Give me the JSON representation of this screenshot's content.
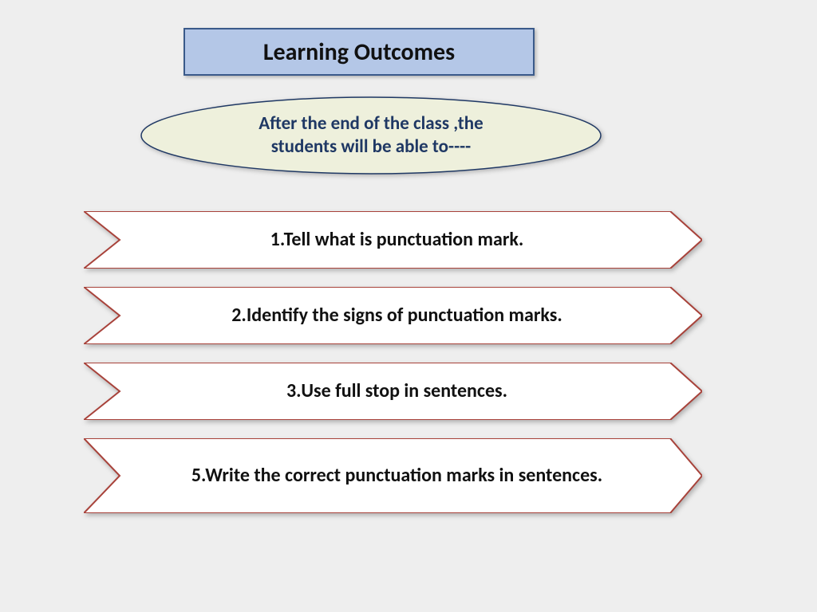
{
  "title": "Learning Outcomes",
  "subtitle_line1": "After the end of the class ,the",
  "subtitle_line2": "students will be able to----",
  "items": [
    "1.Tell what is punctuation mark.",
    "2.Identify the signs of punctuation marks.",
    "3.Use full stop in sentences.",
    "5.Write the correct punctuation marks in sentences."
  ],
  "colors": {
    "page_bg": "#eeeeee",
    "title_bg": "#b4c7e7",
    "title_border": "#3a5a8a",
    "ellipse_fill": "#eef0dc",
    "ellipse_stroke": "#1f3864",
    "ellipse_text": "#1f3864",
    "arrow_fill": "#ffffff",
    "arrow_stroke": "#a8423a"
  },
  "layout": {
    "arrow_heights": [
      72,
      72,
      72,
      94
    ],
    "arrow_tops": [
      265,
      360,
      455,
      550
    ]
  }
}
